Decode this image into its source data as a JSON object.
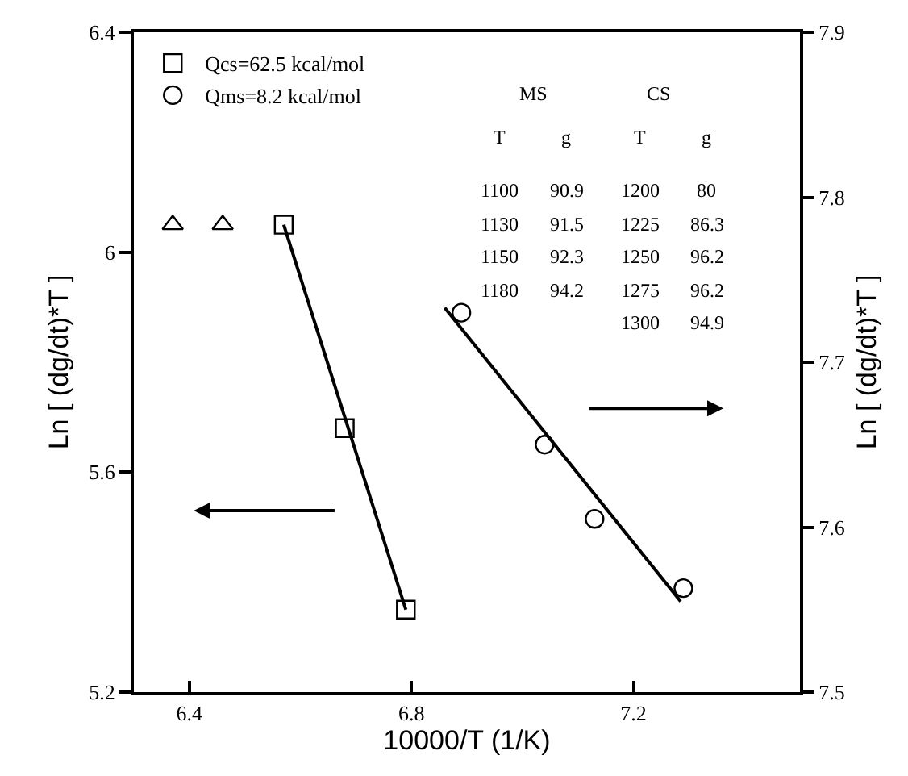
{
  "chart_data": {
    "type": "scatter",
    "xlabel": "10000/T (1/K)",
    "ylabel": "Ln [ (dg/dt)*T ]",
    "y2label": "Ln [ (dg/dt)*T ]",
    "xlim": [
      6.3,
      7.5
    ],
    "xticks": [
      6.4,
      6.8,
      7.2
    ],
    "ylim": [
      5.2,
      6.4
    ],
    "yticks": [
      5.2,
      5.6,
      6.0,
      6.4
    ],
    "y2lim": [
      7.5,
      7.9
    ],
    "y2ticks": [
      7.5,
      7.6,
      7.7,
      7.8,
      7.9
    ],
    "grid": false,
    "legend": "top left",
    "series": [
      {
        "name": "Qcs=62.5 kcal/mol",
        "color": "#000000",
        "marker": "square",
        "x": [
          6.57,
          6.68,
          6.79
        ],
        "values": [
          6.05,
          5.68,
          5.35
        ]
      },
      {
        "name": "Qms=8.2 kcal/mol",
        "color": "#000000",
        "marker": "circle",
        "axis": "y2",
        "x": [
          6.89,
          7.04,
          7.13,
          7.29
        ],
        "values": [
          7.73,
          7.65,
          7.605,
          7.563
        ]
      },
      {
        "color": "#000000",
        "marker": "triangle",
        "x": [
          6.37,
          6.46
        ],
        "values": [
          6.05,
          6.05
        ]
      },
      {
        "type": "line",
        "color": "#000000",
        "marker": "none",
        "x": [
          6.57,
          6.79
        ],
        "values": [
          6.05,
          5.35
        ]
      },
      {
        "type": "line",
        "color": "#000000",
        "marker": "none",
        "axis": "y2",
        "x": [
          6.86,
          7.285
        ],
        "values": [
          7.733,
          7.555
        ]
      }
    ],
    "annotations": [
      "MS",
      "CS",
      "T",
      "g",
      "T",
      "g",
      "1100",
      "90.9",
      "1200",
      "80",
      "1130",
      "91.5",
      "1225",
      "86.3",
      "1150",
      "92.3",
      "1250",
      "96.2",
      "1180",
      "94.2",
      "1275",
      "96.2",
      "1300",
      "94.9"
    ]
  }
}
